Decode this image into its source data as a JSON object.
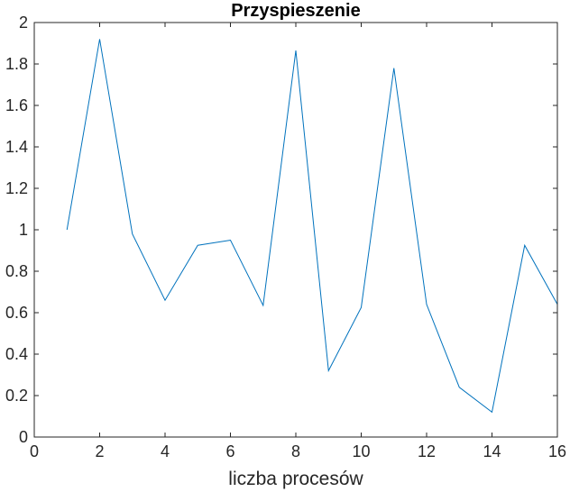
{
  "chart_data": {
    "type": "line",
    "title": "Przyspieszenie",
    "xlabel": "liczba procesów",
    "ylabel": "",
    "xlim": [
      0,
      16
    ],
    "ylim": [
      0,
      2
    ],
    "xticks": [
      0,
      2,
      4,
      6,
      8,
      10,
      12,
      14,
      16
    ],
    "yticks": [
      0,
      0.2,
      0.4,
      0.6,
      0.8,
      1,
      1.2,
      1.4,
      1.6,
      1.8,
      2
    ],
    "xtick_labels": [
      "0",
      "2",
      "4",
      "6",
      "8",
      "10",
      "12",
      "14",
      "16"
    ],
    "ytick_labels": [
      "0",
      "0.2",
      "0.4",
      "0.6",
      "0.8",
      "1",
      "1.2",
      "1.4",
      "1.6",
      "1.8",
      "2"
    ],
    "grid": false,
    "series": [
      {
        "color": "#0072bd",
        "x": [
          1,
          2,
          3,
          4,
          5,
          6,
          7,
          8,
          9,
          10,
          11,
          12,
          13,
          14,
          15,
          16
        ],
        "y": [
          1.0,
          1.92,
          0.98,
          0.66,
          0.925,
          0.95,
          0.635,
          1.865,
          0.32,
          0.625,
          1.78,
          0.64,
          0.24,
          0.12,
          0.925,
          0.64
        ]
      }
    ]
  }
}
